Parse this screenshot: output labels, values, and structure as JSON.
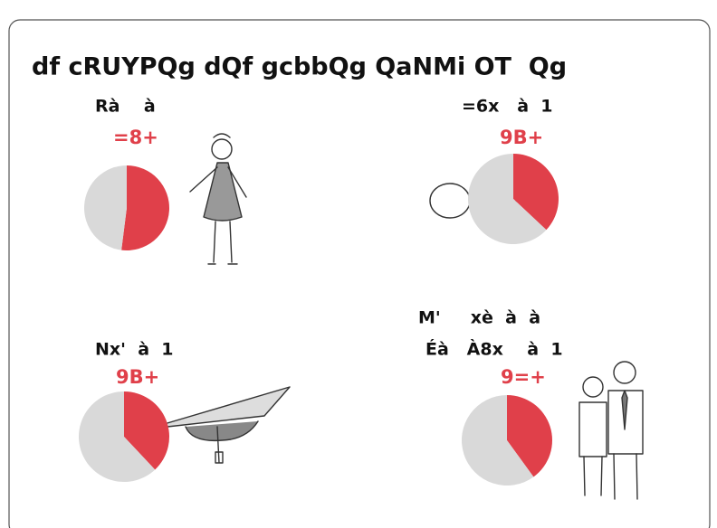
{
  "title": "df cRUYPQg dQf gcbbQg QaNMi OT  Qg",
  "colors": [
    "#e0404a",
    "#d9d9d9"
  ],
  "panels": [
    {
      "label": "Rà    à",
      "value_label": "=8+",
      "values": [
        52,
        48
      ]
    },
    {
      "label": "=6x   à  1",
      "value_label": "9B+",
      "values": [
        37,
        63
      ]
    },
    {
      "label": "Nx'  à  1",
      "value_label": "9B+",
      "values": [
        38,
        62
      ]
    },
    {
      "label": "M'     xè  à  à",
      "label2": "Éà   À8x    à  1",
      "value_label": "9=+",
      "values": [
        40,
        60
      ]
    }
  ]
}
